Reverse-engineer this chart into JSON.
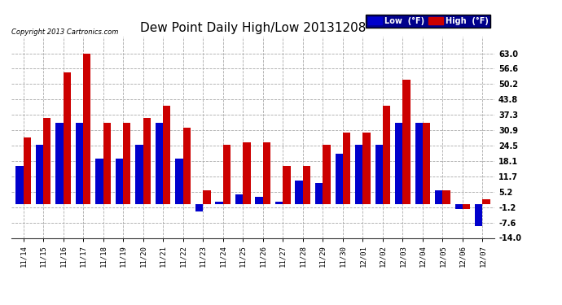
{
  "title": "Dew Point Daily High/Low 20131208",
  "copyright": "Copyright 2013 Cartronics.com",
  "dates": [
    "11/14",
    "11/15",
    "11/16",
    "11/17",
    "11/18",
    "11/19",
    "11/20",
    "11/21",
    "11/22",
    "11/23",
    "11/24",
    "11/25",
    "11/26",
    "11/27",
    "11/28",
    "11/29",
    "11/30",
    "12/01",
    "12/02",
    "12/03",
    "12/04",
    "12/05",
    "12/06",
    "12/07"
  ],
  "low": [
    16,
    25,
    34,
    34,
    19,
    19,
    25,
    34,
    19,
    -3,
    1,
    4,
    3,
    1,
    10,
    9,
    21,
    25,
    25,
    34,
    34,
    6,
    -2,
    -9
  ],
  "high": [
    28,
    36,
    55,
    63,
    34,
    34,
    36,
    41,
    32,
    6,
    25,
    26,
    26,
    16,
    16,
    25,
    30,
    30,
    41,
    52,
    34,
    6,
    -2,
    2
  ],
  "ylim": [
    -14.0,
    70.0
  ],
  "yticks": [
    -14.0,
    -7.6,
    -1.2,
    5.2,
    11.7,
    18.1,
    24.5,
    30.9,
    37.3,
    43.8,
    50.2,
    56.6,
    63.0
  ],
  "low_color": "#0000cc",
  "high_color": "#cc0000",
  "bg_color": "#ffffff",
  "grid_color": "#aaaaaa",
  "bar_width": 0.38
}
